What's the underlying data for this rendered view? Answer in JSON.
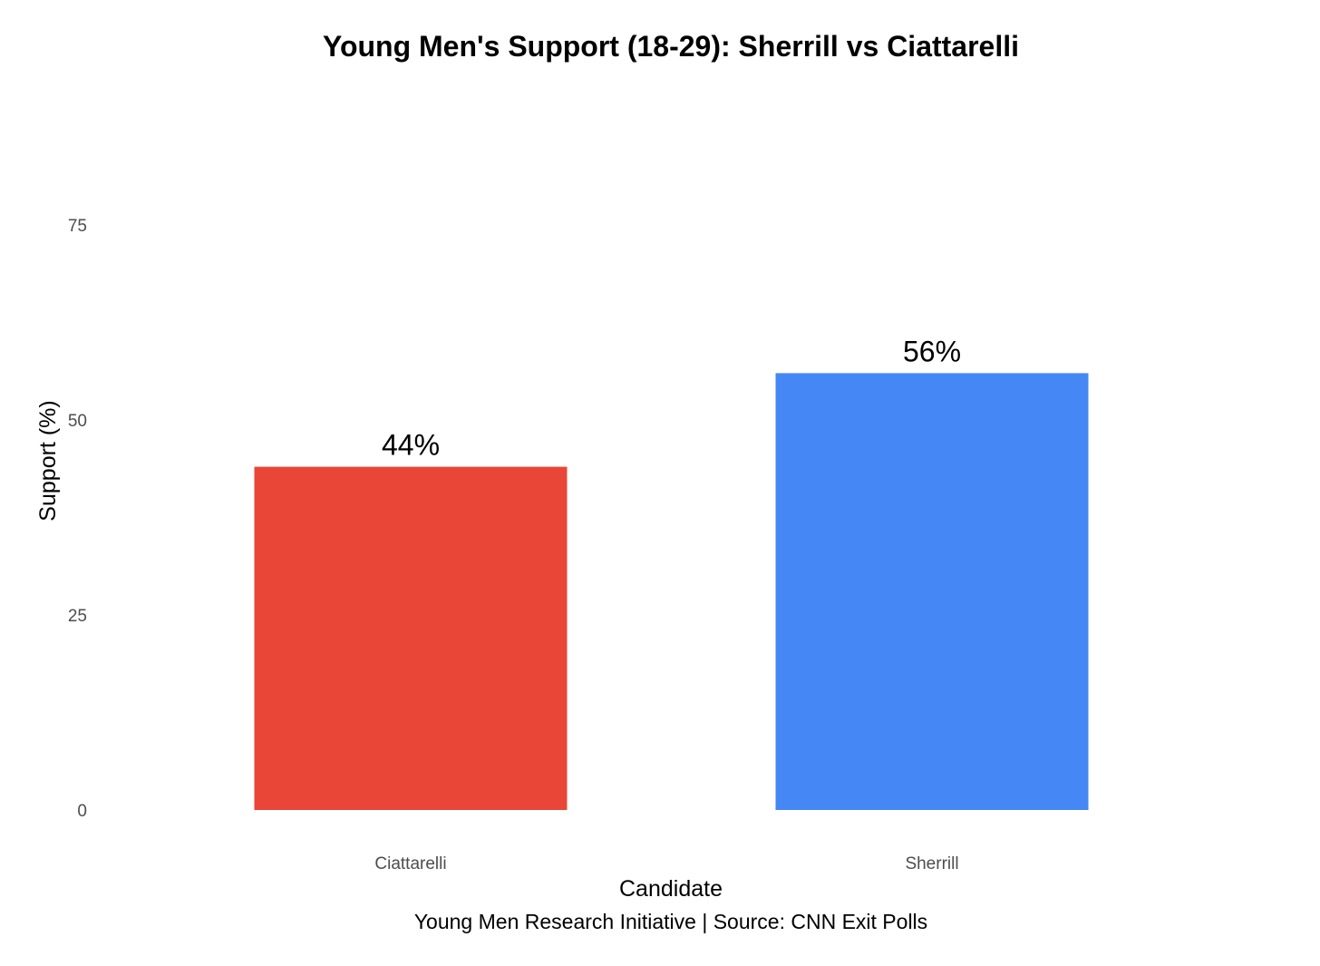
{
  "chart_data": {
    "type": "bar",
    "title": "Young Men's Support (18-29): Sherrill vs Ciattarelli",
    "xlabel": "Candidate",
    "ylabel": "Support (%)",
    "caption": "Young Men Research Initiative | Source: CNN Exit Polls",
    "categories": [
      "Ciattarelli",
      "Sherrill"
    ],
    "values": [
      44,
      56
    ],
    "data_labels": [
      "44%",
      "56%"
    ],
    "colors": [
      "#e94637",
      "#4587f5"
    ],
    "ylim": [
      0,
      80
    ],
    "yticks": [
      0,
      25,
      50,
      75
    ],
    "ytick_labels": [
      "0",
      "25",
      "50",
      "75"
    ],
    "grid": false,
    "legend": "none"
  }
}
